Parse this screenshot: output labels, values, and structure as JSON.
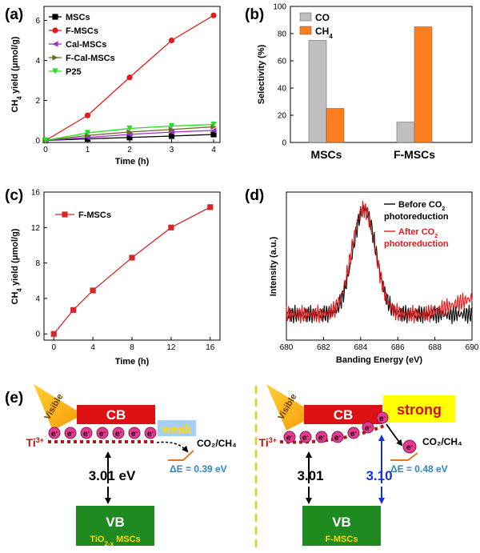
{
  "chart_data": [
    {
      "type": "line",
      "panel_label": "(a)",
      "xlabel": "Time (h)",
      "ylabel_main": "CH",
      "ylabel_sub": "4",
      "ylabel_rest": " yield (μmol/g)",
      "xlim": [
        0,
        4
      ],
      "ylim": [
        -0.1,
        6.7
      ],
      "xticks": [
        "0",
        "1",
        "2",
        "3",
        "4"
      ],
      "yticks": [
        "0",
        "2",
        "4",
        "6"
      ],
      "x": [
        0,
        1,
        2,
        3,
        4
      ],
      "series": [
        {
          "name": "MSCs",
          "color": "#000000",
          "marker": "square",
          "values": [
            0,
            0.08,
            0.15,
            0.22,
            0.3
          ]
        },
        {
          "name": "F-MSCs",
          "color": "#e31a1c",
          "marker": "circle",
          "values": [
            0,
            1.25,
            3.15,
            5.0,
            6.25
          ]
        },
        {
          "name": "Cal-MSCs",
          "color": "#9b30d9",
          "marker": "triangle-left",
          "values": [
            0,
            0.15,
            0.3,
            0.42,
            0.5
          ]
        },
        {
          "name": "F-Cal-MSCs",
          "color": "#6b6b1a",
          "marker": "triangle-right",
          "values": [
            0,
            0.25,
            0.42,
            0.55,
            0.68
          ]
        },
        {
          "name": "P25",
          "color": "#22dd22",
          "marker": "triangle-down",
          "values": [
            0,
            0.38,
            0.6,
            0.72,
            0.8
          ]
        }
      ]
    },
    {
      "type": "bar",
      "panel_label": "(b)",
      "ylabel": "Selectivity (%)",
      "ylim": [
        0,
        100
      ],
      "yticks": [
        "0",
        "20",
        "40",
        "60",
        "80",
        "100"
      ],
      "categories": [
        "MSCs",
        "F-MSCs"
      ],
      "series": [
        {
          "name": "CO",
          "color": "#bfbfbf",
          "values": [
            75,
            15
          ]
        },
        {
          "name": "CH",
          "sub": "4",
          "color": "#ff7f1e",
          "values": [
            25,
            85
          ]
        }
      ]
    },
    {
      "type": "line",
      "panel_label": "(c)",
      "xlabel": "Time (h)",
      "ylabel_main": "CH",
      "ylabel_sub": "4",
      "ylabel_rest": " yield (μmol/g)",
      "xlim": [
        -1,
        17
      ],
      "ylim": [
        -0.7,
        16
      ],
      "xticks": [
        "0",
        "4",
        "8",
        "12",
        "16"
      ],
      "yticks": [
        "0",
        "4",
        "8",
        "12",
        "16"
      ],
      "series": [
        {
          "name": "F-MSCs",
          "color": "#d62728",
          "marker": "square",
          "x": [
            0,
            2,
            4,
            8,
            12,
            16
          ],
          "values": [
            0,
            2.7,
            4.9,
            8.6,
            12.0,
            14.3
          ]
        }
      ]
    },
    {
      "type": "line",
      "panel_label": "(d)",
      "xlabel": "Banding Energy (eV)",
      "ylabel": "Intensity (a.u.)",
      "xlim": [
        680,
        690
      ],
      "ylim": [
        0,
        1.15
      ],
      "xticks": [
        "680",
        "682",
        "684",
        "686",
        "688",
        "690"
      ],
      "series": [
        {
          "name": "Before CO2 photoreduction",
          "legend_l1": "Before CO",
          "legend_sub": "2",
          "legend_l2": "photoreduction",
          "color": "#000000",
          "peak": 684.2,
          "sigma": 0.62
        },
        {
          "name": "After CO2 photoreduction",
          "legend_l1": "After CO",
          "legend_sub": "2",
          "legend_l2": "photoreduction",
          "color": "#e31a1c",
          "peak": 684.15,
          "sigma": 0.64
        }
      ]
    }
  ],
  "diagram_e": {
    "panel_label": "(e)",
    "visible": "Visible",
    "cb": "CB",
    "vb": "VB",
    "ti": "Ti",
    "ti_sup": "3+",
    "electron": "e",
    "electron_sup": "-",
    "left": {
      "tag": "weak",
      "product": "CO₂/CH₄",
      "delta": "ΔE = 0.39 eV",
      "gap": "3.01 eV",
      "vb_main": "TiO",
      "vb_sub": "2-x",
      "vb_rest": " MSCs"
    },
    "right": {
      "tag": "strong",
      "product": "CO₂/CH₄",
      "delta": "ΔE = 0.48 eV",
      "gap1": "3.01",
      "gap2": "3.10",
      "vb_sample": "F-MSCs"
    }
  }
}
